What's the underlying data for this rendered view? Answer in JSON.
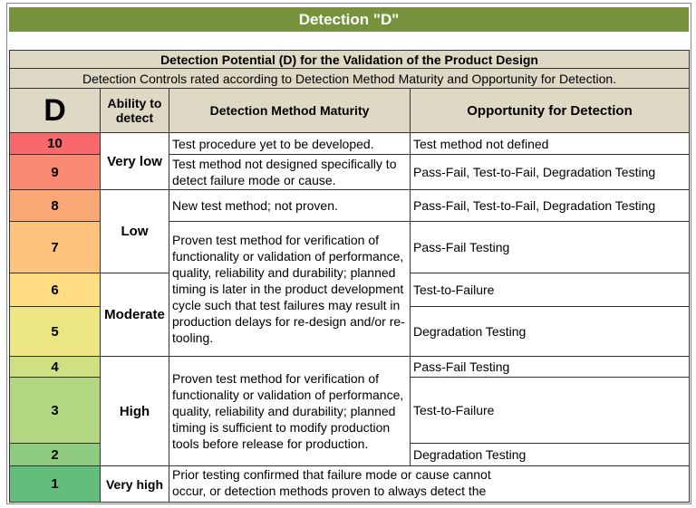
{
  "title": "Detection \"D\"",
  "table": {
    "heading": "Detection Potential (D) for the Validation of the Product Design",
    "subheading": "Detection Controls rated according to Detection Method Maturity and Opportunity for Detection.",
    "columns": [
      "D",
      "Ability to detect",
      "Detection Method Maturity",
      "Opportunity for Detection"
    ],
    "rows": [
      {
        "rank": 10,
        "ability": "Very low",
        "maturity": "Test procedure yet to be developed.",
        "opportunity": "Test method not defined"
      },
      {
        "rank": 9,
        "maturity": "Test method not designed specifically to detect failure mode or cause.",
        "opportunity": "Pass-Fail, Test-to-Fail, Degradation Testing"
      },
      {
        "rank": 8,
        "ability": "Low",
        "maturity": "New test method; not proven.",
        "opportunity": "Pass-Fail, Test-to-Fail, Degradation Testing"
      },
      {
        "rank": 7,
        "maturity": "Proven test method for verification of functionality or validation of performance, quality, reliability and durability; planned timing is later in the product development cycle such that test failures may result in production delays for re-design and/or re-tooling.",
        "opportunity": "Pass-Fail Testing"
      },
      {
        "rank": 6,
        "ability": "Moderate",
        "opportunity": "Test-to-Failure"
      },
      {
        "rank": 5,
        "opportunity": "Degradation Testing"
      },
      {
        "rank": 4,
        "ability": "High",
        "maturity": "Proven test method for verification of functionality or validation of performance, quality, reliability and durability; planned timing is sufficient to modify production tools before release for production.",
        "opportunity": "Pass-Fail Testing"
      },
      {
        "rank": 3,
        "opportunity": "Test-to-Failure"
      },
      {
        "rank": 2,
        "opportunity": "Degradation Testing"
      },
      {
        "rank": 1,
        "ability": "Very high",
        "maturity": "Prior testing confirmed that failure mode or cause cannot occur, or detection methods proven to always detect the"
      }
    ]
  }
}
